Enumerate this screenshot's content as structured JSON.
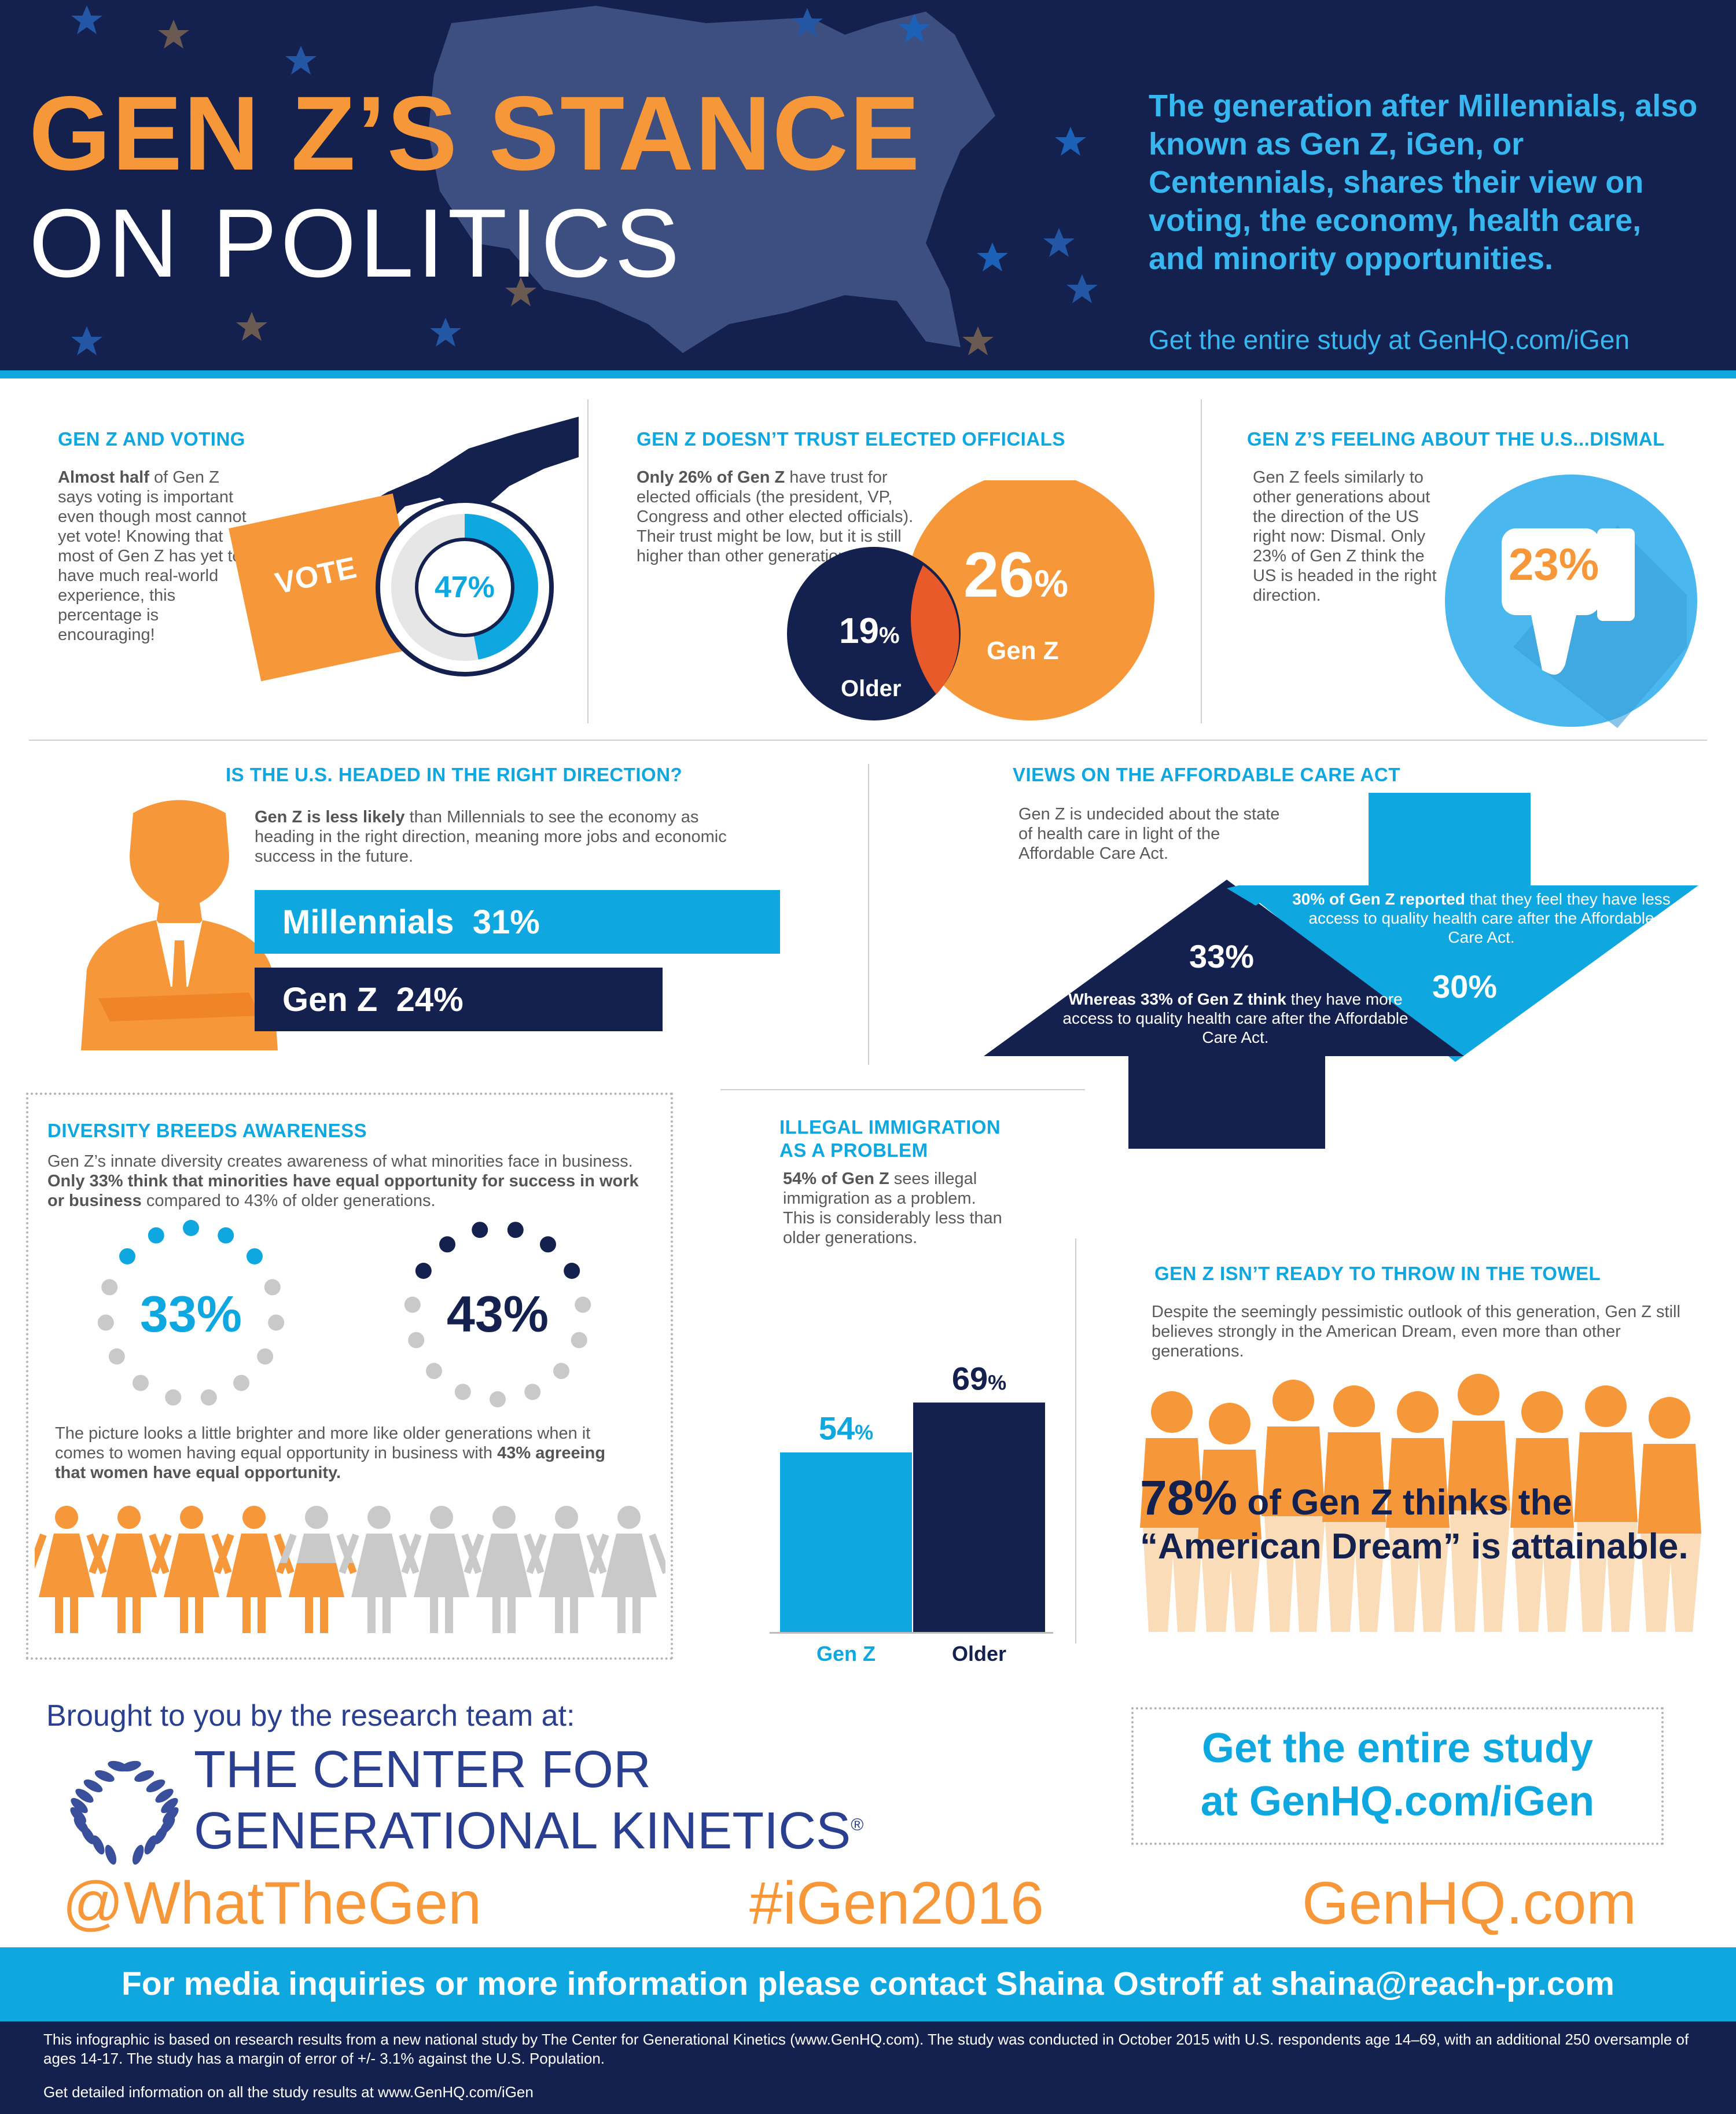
{
  "colors": {
    "navy": "#14214f",
    "blue": "#0fa7e0",
    "orange": "#f6973a",
    "gray": "#c9c9c9"
  },
  "header": {
    "title_line1": "GEN Z’S STANCE",
    "title_line2": "ON POLITICS",
    "intro": "The generation after Millennials, also known as Gen Z, iGen, or Centennials, shares their view on voting, the economy, health care, and minority opportunities.",
    "study_link": "Get the entire study at GenHQ.com/iGen",
    "icons": [
      "usa-map-icon",
      "star-icon"
    ]
  },
  "voting": {
    "title": "GEN Z AND VOTING",
    "lead": "Almost half",
    "text": "of Gen Z says voting is important even though most cannot yet vote! Knowing that most of Gen Z has yet to have much real-world experience, this percentage is encouraging!",
    "ballot_label": "VOTE",
    "percent_label": "47%",
    "percent": 47,
    "icons": [
      "hand-icon",
      "ballot-icon"
    ]
  },
  "trust": {
    "title": "GEN Z DOESN’T TRUST ELECTED OFFICIALS",
    "lead": "Only 26% of Gen Z",
    "text": "have trust for elected officials (the president, VP, Congress and other elected officials). Their trust might be low, but it is still higher than other generations.",
    "older_value": "19",
    "older_label": "Older",
    "genz_value": "26",
    "genz_label": "Gen Z",
    "pct": "%"
  },
  "dismal": {
    "title": "GEN Z’S FEELING ABOUT THE U.S...DISMAL",
    "text": "Gen Z feels similarly to other generations about the direction of the US right now: Dismal. Only 23% of Gen Z think the US is headed in the right direction.",
    "value": "23%",
    "icon": "thumbs-down-icon"
  },
  "direction": {
    "title": "IS THE U.S. HEADED IN THE RIGHT DIRECTION?",
    "lead": "Gen Z is less likely",
    "text": "than Millennials to see the economy as heading in the right direction, meaning more jobs and economic success in the future.",
    "bars": [
      {
        "label": "Millennials",
        "value_label": "31%",
        "value": 31
      },
      {
        "label": "Gen Z",
        "value_label": "24%",
        "value": 24
      }
    ],
    "icon": "businessman-icon"
  },
  "aca": {
    "title": "VIEWS ON THE AFFORDABLE CARE ACT",
    "text": "Gen Z is undecided about the state of health care in light of the Affordable Care Act.",
    "down_lead": "30% of Gen Z reported",
    "down_text": "that they feel they have less access to quality health care after the Affordable Care Act.",
    "down_value": "30%",
    "up_lead": "Whereas 33% of Gen Z think",
    "up_text": "they have more access to quality health care after the Affordable Care Act.",
    "up_value": "33%",
    "icons": [
      "arrow-up-icon",
      "arrow-down-icon"
    ]
  },
  "diversity": {
    "title": "DIVERSITY BREEDS AWARENESS",
    "text1": "Gen Z’s innate diversity creates awareness of what minorities face in business.",
    "text1_bold": "Only 33% think that minorities have equal opportunity for success in work or business",
    "text1_end": "compared to 43% of older generations.",
    "genz_label": "33%",
    "genz_value": 33,
    "older_label": "43%",
    "older_value": 43,
    "text2": "The picture looks a little brighter and more like older generations when it comes to women having equal opportunity in business with",
    "text2_bold": "43% agreeing that women have equal opportunity.",
    "women_value": 43
  },
  "immigration": {
    "title_line1": "ILLEGAL IMMIGRATION",
    "title_line2": "AS A PROBLEM",
    "lead": "54% of Gen Z",
    "text": "sees illegal immigration as a problem. This is considerably less than older generations."
  },
  "chart_data": {
    "type": "bar",
    "categories": [
      "Gen Z",
      "Older"
    ],
    "values": [
      54,
      69
    ],
    "value_labels": [
      "54",
      "69"
    ],
    "unit": "%",
    "colors": [
      "#0fa7e0",
      "#14214f"
    ],
    "ylim": [
      0,
      100
    ]
  },
  "towel": {
    "title": "GEN Z ISN’T READY TO THROW IN THE TOWEL",
    "text": "Despite the seemingly pessimistic outlook of this generation, Gen Z still believes strongly in the American Dream, even more than other generations.",
    "value": "78%",
    "line1": "of Gen Z thinks the",
    "line2": "“American Dream” is attainable.",
    "icon": "people-group-icon"
  },
  "footer": {
    "brought_by": "Brought to you by the research team at:",
    "org_line1": "THE CENTER FOR",
    "org_line2": "GENERATIONAL KINETICS",
    "reg": "®",
    "study_line1": "Get the entire study",
    "study_line2": "at GenHQ.com/iGen",
    "twitter": "@WhatTheGen",
    "hashtag": "#iGen2016",
    "site": "GenHQ.com",
    "contact": "For media inquiries or more information please contact Shaina Ostroff at shaina@reach-pr.com",
    "disclaimer": "This infographic is based on research results from a new national study by The Center for Generational Kinetics (www.GenHQ.com). The study was conducted in October 2015 with U.S. respondents age 14–69, with an additional 250 oversample of ages 14-17. The study has a margin of error of +/- 3.1% against the U.S. Population.",
    "detail": "Get detailed information on all the study results at www.GenHQ.com/iGen",
    "logo_icon": "laurel-wreath-icon"
  }
}
